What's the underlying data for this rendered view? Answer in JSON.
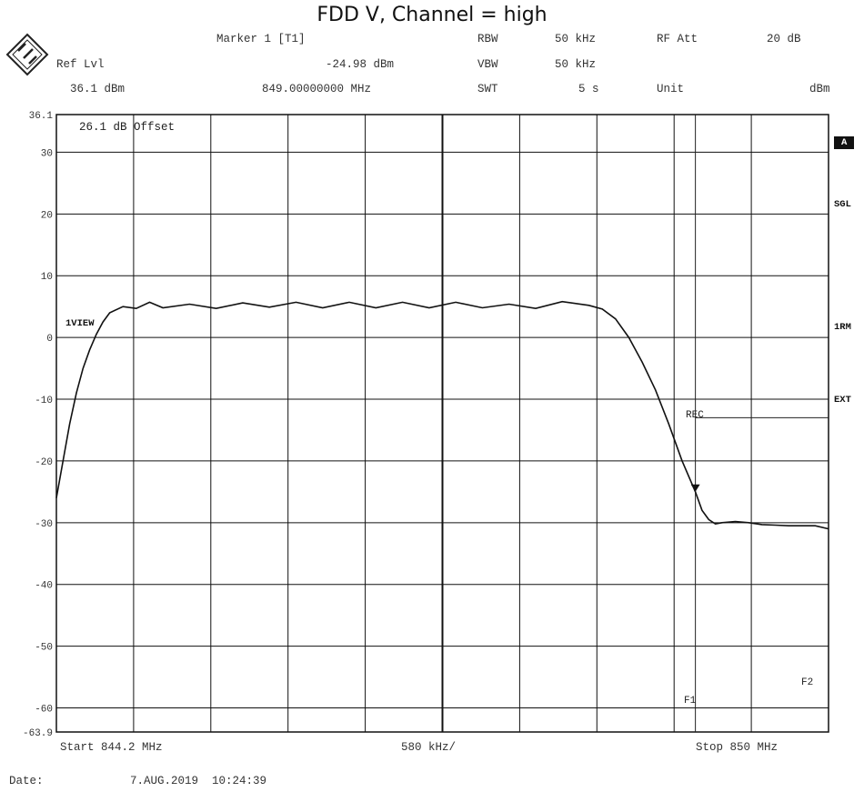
{
  "title": "FDD V, Channel = high",
  "header": {
    "marker_label": "Marker 1 [T1]",
    "marker_level": "-24.98 dBm",
    "marker_freq": "849.00000000 MHz",
    "ref_lvl_label": "Ref Lvl",
    "ref_lvl_value": "36.1 dBm",
    "rbw_label": "RBW",
    "rbw_value": "50 kHz",
    "vbw_label": "VBW",
    "vbw_value": "50 kHz",
    "swt_label": "SWT",
    "swt_value": "5 s",
    "rf_att_label": "RF Att",
    "rf_att_value": "20 dB",
    "unit_label": "Unit",
    "unit_value": "dBm"
  },
  "side_labels": {
    "a": "A",
    "sgl": "SGL",
    "rm": "1RM",
    "ext": "EXT"
  },
  "annotations": {
    "offset": "26.1 dB Offset",
    "trace": "1VIEW",
    "rec": "REC",
    "f1": "F1",
    "f2": "F2"
  },
  "footer": {
    "start": "Start 844.2 MHz",
    "span": "580 kHz/",
    "stop": "Stop 850 MHz",
    "date_label": "Date:",
    "date_value": "7.AUG.2019  10:24:39"
  },
  "chart_data": {
    "type": "line",
    "title": "FDD V, Channel = high",
    "xlabel": "",
    "ylabel": "",
    "xlim": [
      844.2,
      850.0
    ],
    "ylim": [
      -63.9,
      36.1
    ],
    "y_ticks": [
      "36.1",
      "30",
      "20",
      "10",
      "0",
      "-10",
      "-20",
      "-30",
      "-40",
      "-50",
      "-60",
      "-63.9"
    ],
    "grid": true,
    "reference_lines": {
      "rec_level_dBm": -13,
      "f1_MHz": 849.0,
      "f2_MHz": 850.0
    },
    "marker": {
      "x": 849.0,
      "y": -24.98
    },
    "series": [
      {
        "x": [
          844.2,
          844.25,
          844.3,
          844.35,
          844.4,
          844.45,
          844.5,
          844.55,
          844.6,
          844.7,
          844.8,
          844.9,
          845.0,
          845.2,
          845.4,
          845.6,
          845.8,
          846.0,
          846.2,
          846.4,
          846.6,
          846.8,
          847.0,
          847.2,
          847.4,
          847.6,
          847.8,
          848.0,
          848.2,
          848.3,
          848.4,
          848.5,
          848.6,
          848.7,
          848.8,
          848.9,
          849.0,
          849.05,
          849.1,
          849.15,
          849.2,
          849.3,
          849.4,
          849.5,
          849.6,
          849.7,
          849.8,
          849.9,
          850.0
        ],
        "values": [
          -26,
          -20,
          -14,
          -9,
          -5,
          -2,
          0.5,
          2.5,
          4,
          4.6,
          5.1,
          5.3,
          5.2,
          5.0,
          5.1,
          5.2,
          5.3,
          5.3,
          5.2,
          5.3,
          5.2,
          5.3,
          5.2,
          5.3,
          5.2,
          5.0,
          5.1,
          5.4,
          5.2,
          4.6,
          3.0,
          0,
          -4,
          -8.5,
          -14,
          -20,
          -25,
          -28,
          -29.5,
          -30.2,
          -30.0,
          -29.8,
          -30.0,
          -30.3,
          -30.4,
          -30.5,
          -30.5,
          -30.5,
          -31.0
        ]
      }
    ]
  }
}
